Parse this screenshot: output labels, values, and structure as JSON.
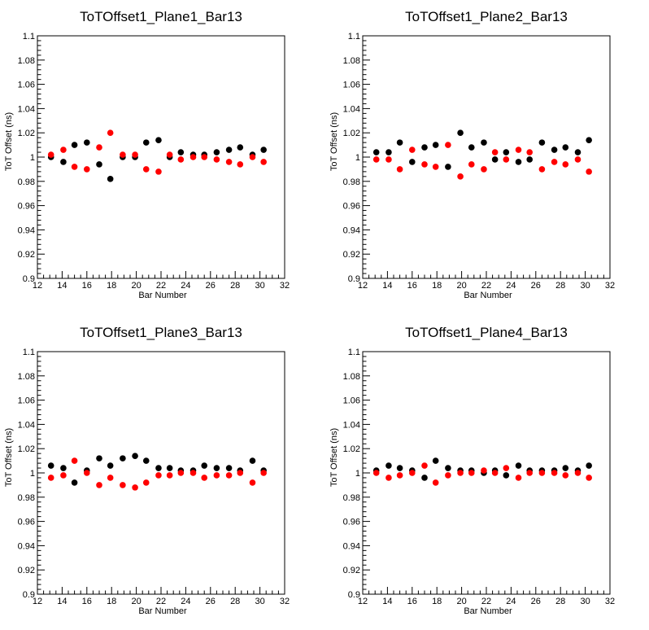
{
  "chart_data": [
    {
      "type": "scatter",
      "title": "ToTOffset1_Plane1_Bar13",
      "xlabel": "Bar Number",
      "ylabel": "ToT Offset (ns)",
      "xlim": [
        12,
        32
      ],
      "ylim": [
        0.9,
        1.1
      ],
      "xticks": [
        "12",
        "14",
        "16",
        "18",
        "20",
        "22",
        "24",
        "26",
        "28",
        "30",
        "32"
      ],
      "yticks": [
        "0.9",
        "0.92",
        "0.94",
        "0.96",
        "0.98",
        "1",
        "1.02",
        "1.04",
        "1.06",
        "1.08",
        "1.1"
      ],
      "grid": false,
      "series": [
        {
          "color": "#000000",
          "points": [
            [
              13.1,
              1.0
            ],
            [
              14.1,
              0.996
            ],
            [
              15.0,
              1.01
            ],
            [
              16.0,
              1.012
            ],
            [
              17.0,
              0.994
            ],
            [
              17.9,
              0.982
            ],
            [
              18.9,
              1.0
            ],
            [
              19.9,
              1.0
            ],
            [
              20.8,
              1.012
            ],
            [
              21.8,
              1.014
            ],
            [
              22.7,
              1.0
            ],
            [
              23.6,
              1.004
            ],
            [
              24.6,
              1.002
            ],
            [
              25.5,
              1.002
            ],
            [
              26.5,
              1.004
            ],
            [
              27.5,
              1.006
            ],
            [
              28.4,
              1.008
            ],
            [
              29.4,
              1.002
            ],
            [
              30.3,
              1.006
            ]
          ]
        },
        {
          "color": "#ff0000",
          "points": [
            [
              13.1,
              1.002
            ],
            [
              14.1,
              1.006
            ],
            [
              15.0,
              0.992
            ],
            [
              16.0,
              0.99
            ],
            [
              17.0,
              1.008
            ],
            [
              17.9,
              1.02
            ],
            [
              18.9,
              1.002
            ],
            [
              19.9,
              1.002
            ],
            [
              20.8,
              0.99
            ],
            [
              21.8,
              0.988
            ],
            [
              22.7,
              1.002
            ],
            [
              23.6,
              0.998
            ],
            [
              24.6,
              1.0
            ],
            [
              25.5,
              1.0
            ],
            [
              26.5,
              0.998
            ],
            [
              27.5,
              0.996
            ],
            [
              28.4,
              0.994
            ],
            [
              29.4,
              1.0
            ],
            [
              30.3,
              0.996
            ]
          ]
        }
      ]
    },
    {
      "type": "scatter",
      "title": "ToTOffset1_Plane2_Bar13",
      "xlabel": "Bar Number",
      "ylabel": "ToT Offset (ns)",
      "xlim": [
        12,
        32
      ],
      "ylim": [
        0.9,
        1.1
      ],
      "xticks": [
        "12",
        "14",
        "16",
        "18",
        "20",
        "22",
        "24",
        "26",
        "28",
        "30",
        "32"
      ],
      "yticks": [
        "0.9",
        "0.92",
        "0.94",
        "0.96",
        "0.98",
        "1",
        "1.02",
        "1.04",
        "1.06",
        "1.08",
        "1.1"
      ],
      "grid": false,
      "series": [
        {
          "color": "#000000",
          "points": [
            [
              13.1,
              1.004
            ],
            [
              14.1,
              1.004
            ],
            [
              15.0,
              1.012
            ],
            [
              16.0,
              0.996
            ],
            [
              17.0,
              1.008
            ],
            [
              17.9,
              1.01
            ],
            [
              18.9,
              0.992
            ],
            [
              19.9,
              1.02
            ],
            [
              20.8,
              1.008
            ],
            [
              21.8,
              1.012
            ],
            [
              22.7,
              0.998
            ],
            [
              23.6,
              1.004
            ],
            [
              24.6,
              0.996
            ],
            [
              25.5,
              0.998
            ],
            [
              26.5,
              1.012
            ],
            [
              27.5,
              1.006
            ],
            [
              28.4,
              1.008
            ],
            [
              29.4,
              1.004
            ],
            [
              30.3,
              1.014
            ]
          ]
        },
        {
          "color": "#ff0000",
          "points": [
            [
              13.1,
              0.998
            ],
            [
              14.1,
              0.998
            ],
            [
              15.0,
              0.99
            ],
            [
              16.0,
              1.006
            ],
            [
              17.0,
              0.994
            ],
            [
              17.9,
              0.992
            ],
            [
              18.9,
              1.01
            ],
            [
              19.9,
              0.984
            ],
            [
              20.8,
              0.994
            ],
            [
              21.8,
              0.99
            ],
            [
              22.7,
              1.004
            ],
            [
              23.6,
              0.998
            ],
            [
              24.6,
              1.006
            ],
            [
              25.5,
              1.004
            ],
            [
              26.5,
              0.99
            ],
            [
              27.5,
              0.996
            ],
            [
              28.4,
              0.994
            ],
            [
              29.4,
              0.998
            ],
            [
              30.3,
              0.988
            ]
          ]
        }
      ]
    },
    {
      "type": "scatter",
      "title": "ToTOffset1_Plane3_Bar13",
      "xlabel": "Bar Number",
      "ylabel": "ToT Offset (ns)",
      "xlim": [
        12,
        32
      ],
      "ylim": [
        0.9,
        1.1
      ],
      "xticks": [
        "12",
        "14",
        "16",
        "18",
        "20",
        "22",
        "24",
        "26",
        "28",
        "30",
        "32"
      ],
      "yticks": [
        "0.9",
        "0.92",
        "0.94",
        "0.96",
        "0.98",
        "1",
        "1.02",
        "1.04",
        "1.06",
        "1.08",
        "1.1"
      ],
      "grid": false,
      "series": [
        {
          "color": "#000000",
          "points": [
            [
              13.1,
              1.006
            ],
            [
              14.1,
              1.004
            ],
            [
              15.0,
              0.992
            ],
            [
              16.0,
              1.002
            ],
            [
              17.0,
              1.012
            ],
            [
              17.9,
              1.006
            ],
            [
              18.9,
              1.012
            ],
            [
              19.9,
              1.014
            ],
            [
              20.8,
              1.01
            ],
            [
              21.8,
              1.004
            ],
            [
              22.7,
              1.004
            ],
            [
              23.6,
              1.002
            ],
            [
              24.6,
              1.002
            ],
            [
              25.5,
              1.006
            ],
            [
              26.5,
              1.004
            ],
            [
              27.5,
              1.004
            ],
            [
              28.4,
              1.002
            ],
            [
              29.4,
              1.01
            ],
            [
              30.3,
              1.002
            ]
          ]
        },
        {
          "color": "#ff0000",
          "points": [
            [
              13.1,
              0.996
            ],
            [
              14.1,
              0.998
            ],
            [
              15.0,
              1.01
            ],
            [
              16.0,
              1.0
            ],
            [
              17.0,
              0.99
            ],
            [
              17.9,
              0.996
            ],
            [
              18.9,
              0.99
            ],
            [
              19.9,
              0.988
            ],
            [
              20.8,
              0.992
            ],
            [
              21.8,
              0.998
            ],
            [
              22.7,
              0.998
            ],
            [
              23.6,
              1.0
            ],
            [
              24.6,
              1.0
            ],
            [
              25.5,
              0.996
            ],
            [
              26.5,
              0.998
            ],
            [
              27.5,
              0.998
            ],
            [
              28.4,
              1.0
            ],
            [
              29.4,
              0.992
            ],
            [
              30.3,
              1.0
            ]
          ]
        }
      ]
    },
    {
      "type": "scatter",
      "title": "ToTOffset1_Plane4_Bar13",
      "xlabel": "Bar Number",
      "ylabel": "ToT Offset (ns)",
      "xlim": [
        12,
        32
      ],
      "ylim": [
        0.9,
        1.1
      ],
      "xticks": [
        "12",
        "14",
        "16",
        "18",
        "20",
        "22",
        "24",
        "26",
        "28",
        "30",
        "32"
      ],
      "yticks": [
        "0.9",
        "0.92",
        "0.94",
        "0.96",
        "0.98",
        "1",
        "1.02",
        "1.04",
        "1.06",
        "1.08",
        "1.1"
      ],
      "grid": false,
      "series": [
        {
          "color": "#000000",
          "points": [
            [
              13.1,
              1.002
            ],
            [
              14.1,
              1.006
            ],
            [
              15.0,
              1.004
            ],
            [
              16.0,
              1.002
            ],
            [
              17.0,
              0.996
            ],
            [
              17.9,
              1.01
            ],
            [
              18.9,
              1.004
            ],
            [
              19.9,
              1.002
            ],
            [
              20.8,
              1.002
            ],
            [
              21.8,
              1.0
            ],
            [
              22.7,
              1.002
            ],
            [
              23.6,
              0.998
            ],
            [
              24.6,
              1.006
            ],
            [
              25.5,
              1.002
            ],
            [
              26.5,
              1.002
            ],
            [
              27.5,
              1.002
            ],
            [
              28.4,
              1.004
            ],
            [
              29.4,
              1.002
            ],
            [
              30.3,
              1.006
            ]
          ]
        },
        {
          "color": "#ff0000",
          "points": [
            [
              13.1,
              1.0
            ],
            [
              14.1,
              0.996
            ],
            [
              15.0,
              0.998
            ],
            [
              16.0,
              1.0
            ],
            [
              17.0,
              1.006
            ],
            [
              17.9,
              0.992
            ],
            [
              18.9,
              0.998
            ],
            [
              19.9,
              1.0
            ],
            [
              20.8,
              1.0
            ],
            [
              21.8,
              1.002
            ],
            [
              22.7,
              1.0
            ],
            [
              23.6,
              1.004
            ],
            [
              24.6,
              0.996
            ],
            [
              25.5,
              1.0
            ],
            [
              26.5,
              1.0
            ],
            [
              27.5,
              1.0
            ],
            [
              28.4,
              0.998
            ],
            [
              29.4,
              1.0
            ],
            [
              30.3,
              0.996
            ]
          ]
        }
      ]
    }
  ]
}
